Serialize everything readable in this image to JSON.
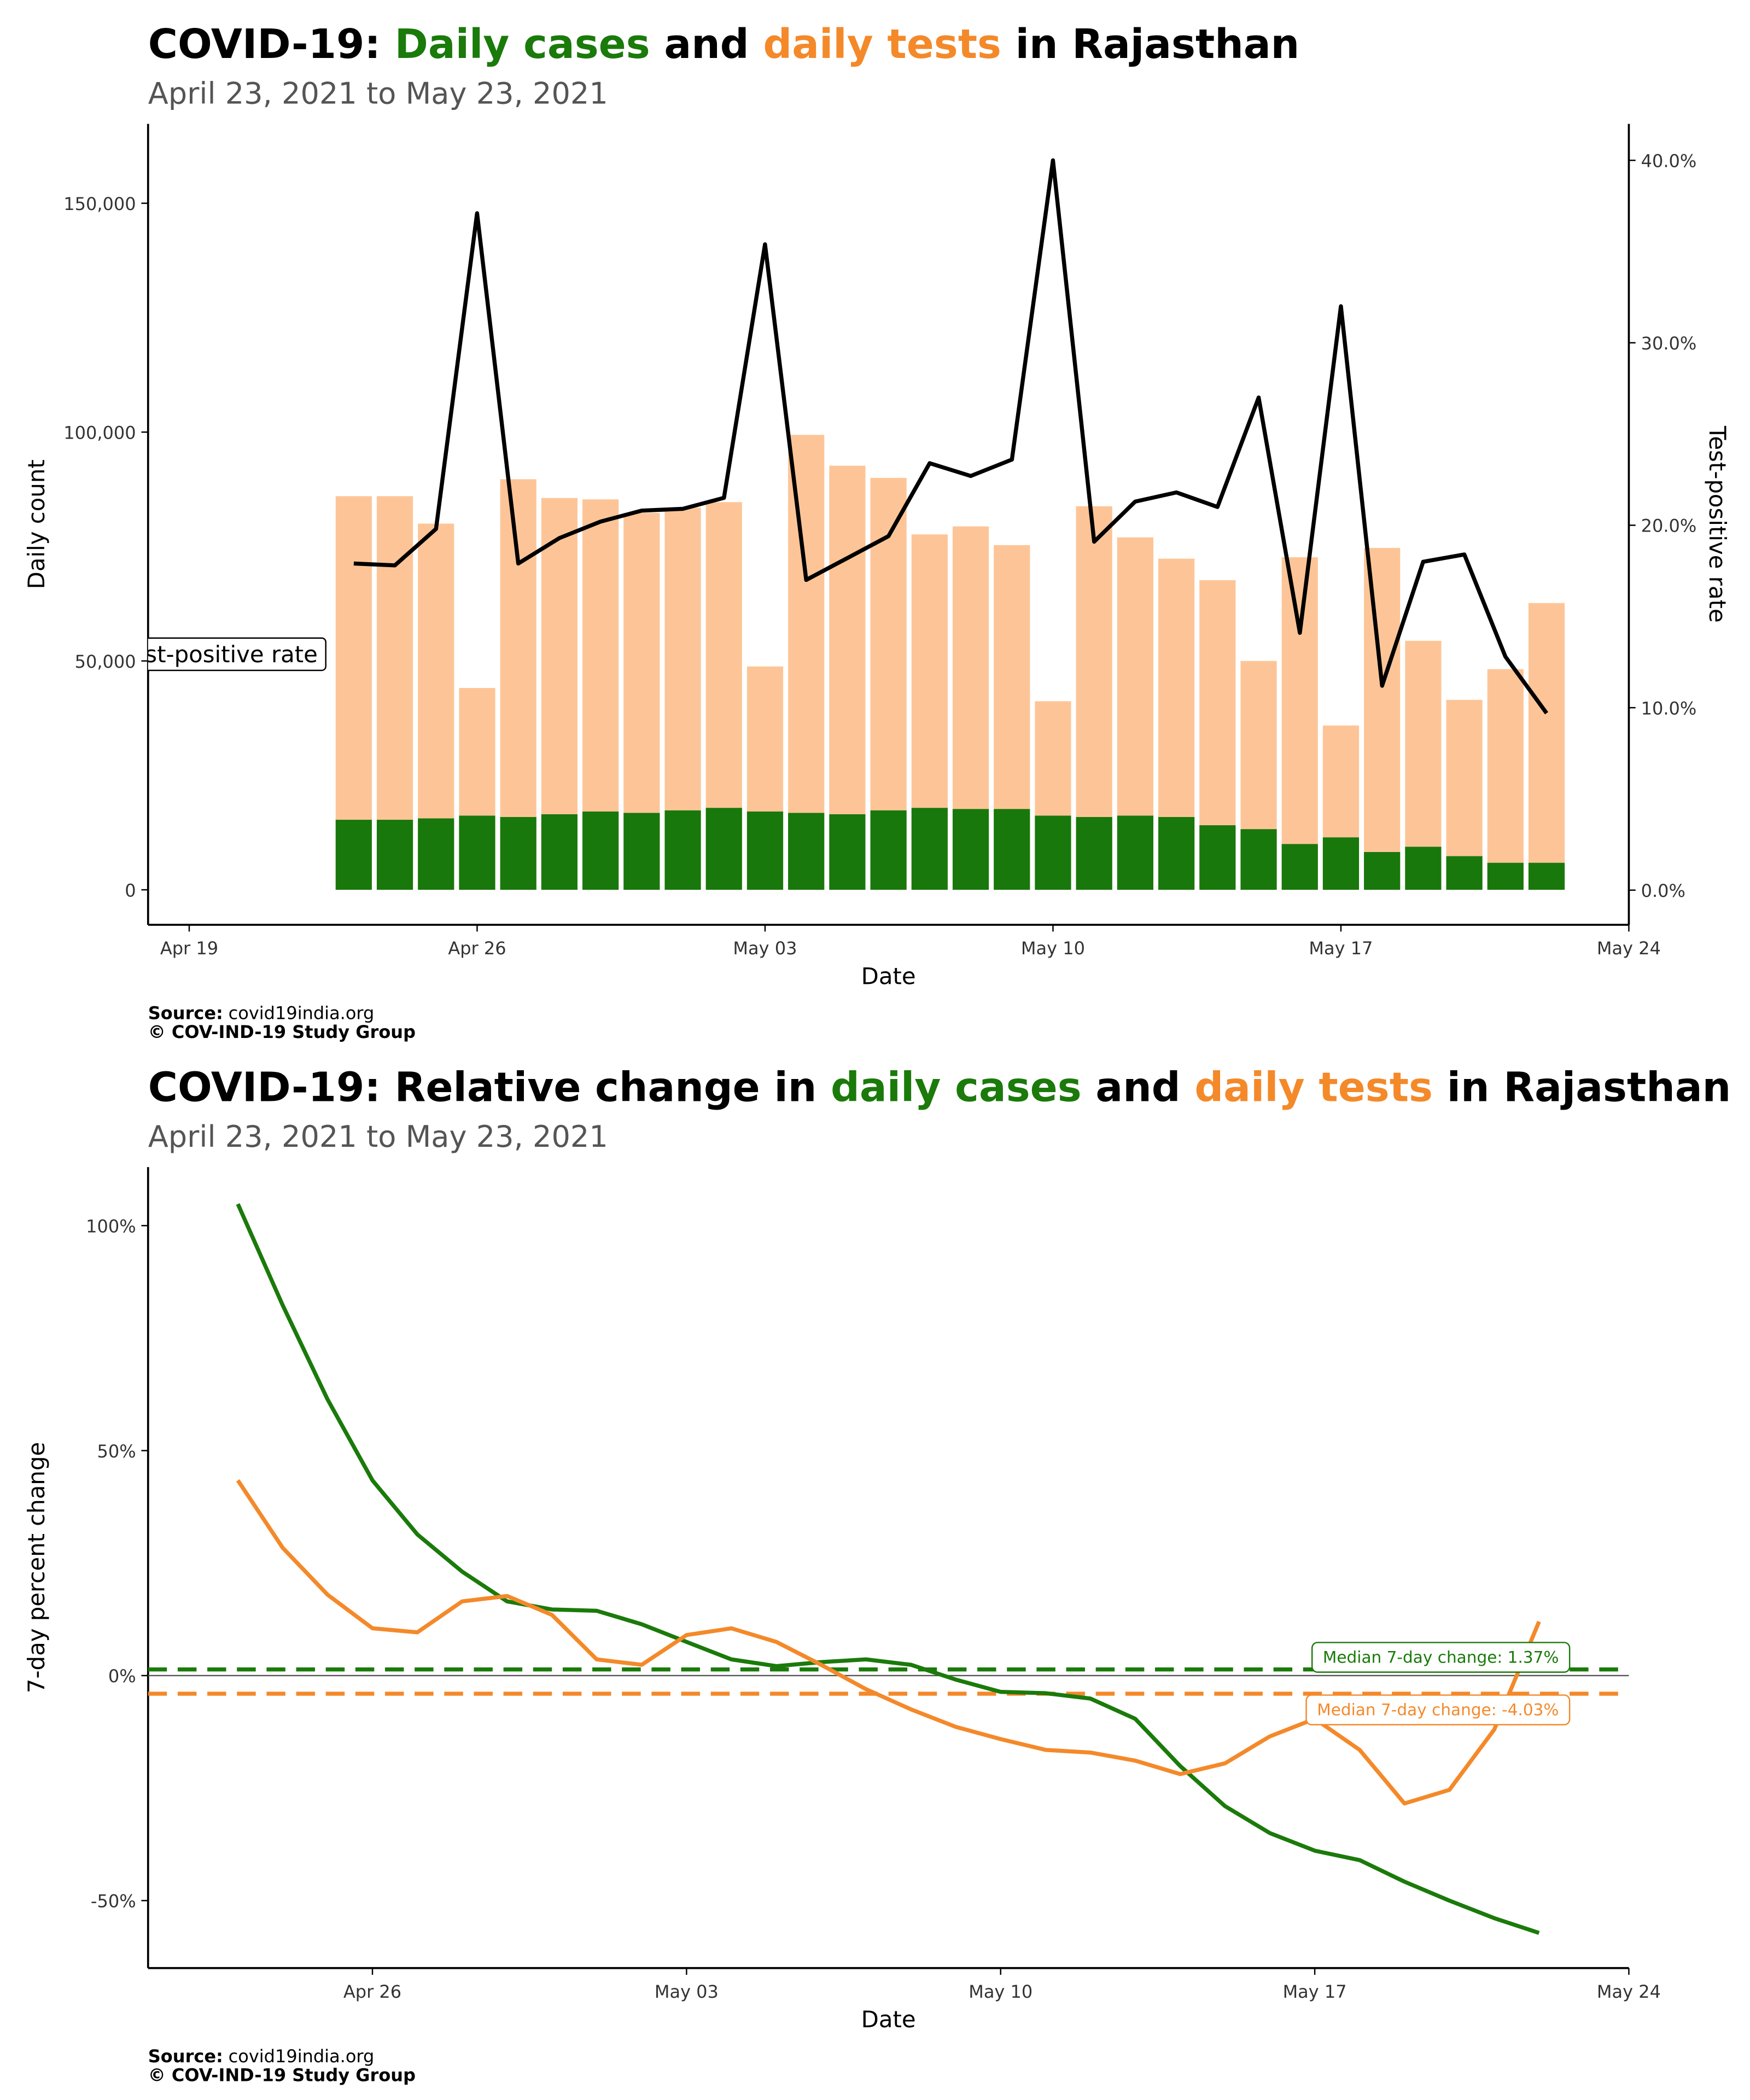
{
  "chart_data": [
    {
      "type": "bar",
      "title_parts": [
        {
          "text": "COVID-19: ",
          "color": "#000000"
        },
        {
          "text": "Daily cases",
          "color": "#1a7a0a"
        },
        {
          "text": " and ",
          "color": "#000000"
        },
        {
          "text": "daily tests",
          "color": "#f4892a"
        },
        {
          "text": " in Rajasthan",
          "color": "#000000"
        }
      ],
      "subtitle": "April 23, 2021 to May 23, 2021",
      "x_label": "Date",
      "y_label": "Daily count",
      "y2_label": "Test-positive rate",
      "x": [
        "Apr 23",
        "Apr 24",
        "Apr 25",
        "Apr 26",
        "Apr 27",
        "Apr 28",
        "Apr 29",
        "Apr 30",
        "May 01",
        "May 02",
        "May 03",
        "May 04",
        "May 05",
        "May 06",
        "May 07",
        "May 08",
        "May 09",
        "May 10",
        "May 11",
        "May 12",
        "May 13",
        "May 14",
        "May 15",
        "May 16",
        "May 17",
        "May 18",
        "May 19",
        "May 20",
        "May 21",
        "May 22"
      ],
      "series": [
        {
          "color": "#fdc597",
          "values": [
            86000,
            86000,
            80000,
            44100,
            89700,
            85600,
            85300,
            82350,
            83500,
            84700,
            48800,
            99400,
            92650,
            90000,
            77650,
            79400,
            75300,
            41200,
            83800,
            77000,
            72350,
            67650,
            50000,
            72650,
            35900,
            74700,
            54400,
            41500,
            48200,
            62650
          ]
        },
        {
          "color": "#18780b",
          "values": [
            15300,
            15300,
            15600,
            16200,
            15900,
            16500,
            17100,
            16800,
            17350,
            17900,
            17100,
            16800,
            16500,
            17350,
            17900,
            17650,
            17650,
            16200,
            15900,
            16200,
            15900,
            14100,
            13250,
            10000,
            11450,
            8250,
            9400,
            7350,
            5900,
            5900
          ]
        },
        {
          "color": "#000000",
          "axis": "y2",
          "values": [
            17.9,
            17.8,
            19.8,
            37.1,
            17.9,
            19.3,
            20.2,
            20.8,
            20.9,
            21.5,
            35.4,
            17.0,
            18.2,
            19.4,
            23.4,
            22.7,
            23.6,
            40.0,
            19.1,
            21.3,
            21.8,
            21.0,
            27.0,
            14.1,
            32.0,
            11.2,
            18.0,
            18.4,
            12.8,
            9.7
          ]
        }
      ],
      "xlim": [
        "Apr 18",
        "May 24"
      ],
      "xticks": [
        "Apr 19",
        "Apr 26",
        "May 03",
        "May 10",
        "May 17",
        "May 24"
      ],
      "ylim": [
        -7650,
        167350
      ],
      "yticks": [
        0,
        {
          "value": 50000,
          "label": "50,000"
        },
        {
          "value": 100000,
          "label": "100,000"
        },
        {
          "value": 150000,
          "label": "150,000"
        }
      ],
      "y2lim": [
        -1.9,
        42
      ],
      "y2ticks": [
        {
          "value": 0,
          "label": "0.0%"
        },
        {
          "value": 10,
          "label": "10.0%"
        },
        {
          "value": 20,
          "label": "20.0%"
        },
        {
          "value": 30,
          "label": "30.0%"
        },
        {
          "value": 40,
          "label": "40.0%"
        }
      ],
      "annotations": [
        {
          "text": "st-positive rate"
        }
      ],
      "source_label": "Source:",
      "source": "covid19india.org",
      "copyright": "© COV-IND-19 Study Group"
    },
    {
      "type": "line",
      "title_parts": [
        {
          "text": "COVID-19: Relative change in ",
          "color": "#000000"
        },
        {
          "text": "daily cases",
          "color": "#1a7a0a"
        },
        {
          "text": " and ",
          "color": "#000000"
        },
        {
          "text": "daily tests",
          "color": "#f4892a"
        },
        {
          "text": " in Rajasthan",
          "color": "#000000"
        }
      ],
      "subtitle": "April 23, 2021 to May 23, 2021",
      "x_label": "Date",
      "y_label": "7-day percent change",
      "x": [
        "Apr 23",
        "Apr 24",
        "Apr 25",
        "Apr 26",
        "Apr 27",
        "Apr 28",
        "Apr 29",
        "Apr 30",
        "May 01",
        "May 02",
        "May 03",
        "May 04",
        "May 05",
        "May 06",
        "May 07",
        "May 08",
        "May 09",
        "May 10",
        "May 11",
        "May 12",
        "May 13",
        "May 14",
        "May 15",
        "May 16",
        "May 17",
        "May 18",
        "May 19",
        "May 20",
        "May 21",
        "May 22"
      ],
      "series": [
        {
          "color": "#1a7a0a",
          "values": [
            104.8,
            82.3,
            61.4,
            43.4,
            31.4,
            23.1,
            16.5,
            14.7,
            14.4,
            11.4,
            7.5,
            3.6,
            2.1,
            3.0,
            3.6,
            2.4,
            -0.9,
            -3.6,
            -3.9,
            -5.1,
            -9.6,
            -20.1,
            -29.0,
            -35.0,
            -38.9,
            -41.0,
            -45.8,
            -50.0,
            -53.9,
            -57.2
          ]
        },
        {
          "color": "#f4892a",
          "values": [
            43.4,
            28.4,
            18.0,
            10.5,
            9.6,
            16.5,
            17.7,
            13.5,
            3.6,
            2.4,
            9.0,
            10.5,
            7.5,
            2.4,
            -3.0,
            -7.5,
            -11.4,
            -14.1,
            -16.5,
            -17.1,
            -18.9,
            -21.9,
            -19.5,
            -13.5,
            -9.6,
            -16.5,
            -28.4,
            -25.4,
            -12.0,
            12.0
          ]
        }
      ],
      "reference_lines": [
        {
          "value": 1.37,
          "label": "Median 7-day change: 1.37%",
          "color": "#1a7a0a"
        },
        {
          "value": -4.03,
          "label": "Median 7-day change: -4.03%",
          "color": "#f4892a"
        }
      ],
      "xlim": [
        "Apr 21",
        "May 24"
      ],
      "xticks": [
        "Apr 26",
        "May 03",
        "May 10",
        "May 17",
        "May 24"
      ],
      "ylim": [
        -65,
        113
      ],
      "yticks": [
        {
          "value": -50,
          "label": "-50%"
        },
        {
          "value": 0,
          "label": "0%"
        },
        {
          "value": 50,
          "label": "50%"
        },
        {
          "value": 100,
          "label": "100%"
        }
      ],
      "source_label": "Source:",
      "source": "covid19india.org",
      "copyright": "© COV-IND-19 Study Group"
    }
  ]
}
